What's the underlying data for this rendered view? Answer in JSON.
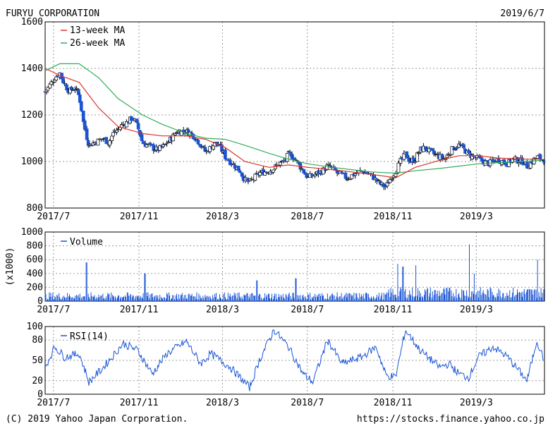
{
  "header": {
    "company": "FURYU CORPORATION",
    "date": "2019/6/7"
  },
  "footer": {
    "copyright": "(C) 2019 Yahoo Japan Corporation.",
    "url": "https://stocks.finance.yahoo.co.jp"
  },
  "colors": {
    "up": "#ffffff",
    "down": "#1a55d6",
    "ma13": "#e03030",
    "ma26": "#2fae5a",
    "volume": "#1a55d6",
    "rsi": "#1a55d6",
    "grid": "#9a9a9a"
  },
  "chart_data": [
    {
      "type": "candlestick",
      "name": "price",
      "ylim": [
        800,
        1600
      ],
      "yticks": [
        800,
        1000,
        1200,
        1400,
        1600
      ],
      "xrange": [
        "2017-06-19",
        "2019-06-07"
      ],
      "xticks": [
        {
          "date": "2017-07-01",
          "label": "2017/7"
        },
        {
          "date": "2017-11-01",
          "label": "2017/11"
        },
        {
          "date": "2018-03-01",
          "label": "2018/3"
        },
        {
          "date": "2018-07-01",
          "label": "2018/7"
        },
        {
          "date": "2018-11-01",
          "label": "2018/11"
        },
        {
          "date": "2019-03-01",
          "label": "2019/3"
        }
      ],
      "grid": true,
      "legend": [
        {
          "name": "13-week MA",
          "color": "ma13"
        },
        {
          "name": "26-week MA",
          "color": "ma26"
        }
      ],
      "anchors": [
        [
          "2017-06-19",
          1300
        ],
        [
          "2017-06-26",
          1330
        ],
        [
          "2017-07-03",
          1360
        ],
        [
          "2017-07-10",
          1380
        ],
        [
          "2017-07-17",
          1330
        ],
        [
          "2017-07-24",
          1300
        ],
        [
          "2017-07-31",
          1320
        ],
        [
          "2017-08-07",
          1280
        ],
        [
          "2017-08-14",
          1150
        ],
        [
          "2017-08-21",
          1070
        ],
        [
          "2017-08-28",
          1080
        ],
        [
          "2017-09-04",
          1090
        ],
        [
          "2017-09-11",
          1100
        ],
        [
          "2017-09-18",
          1080
        ],
        [
          "2017-09-25",
          1120
        ],
        [
          "2017-10-02",
          1140
        ],
        [
          "2017-10-09",
          1160
        ],
        [
          "2017-10-16",
          1170
        ],
        [
          "2017-10-23",
          1190
        ],
        [
          "2017-10-30",
          1150
        ],
        [
          "2017-11-06",
          1080
        ],
        [
          "2017-11-13",
          1070
        ],
        [
          "2017-11-20",
          1060
        ],
        [
          "2017-11-27",
          1050
        ],
        [
          "2017-12-04",
          1060
        ],
        [
          "2017-12-11",
          1080
        ],
        [
          "2017-12-18",
          1100
        ],
        [
          "2017-12-25",
          1130
        ],
        [
          "2018-01-08",
          1130
        ],
        [
          "2018-01-15",
          1120
        ],
        [
          "2018-01-22",
          1100
        ],
        [
          "2018-01-29",
          1070
        ],
        [
          "2018-02-05",
          1040
        ],
        [
          "2018-02-12",
          1060
        ],
        [
          "2018-02-19",
          1080
        ],
        [
          "2018-02-26",
          1060
        ],
        [
          "2018-03-05",
          1020
        ],
        [
          "2018-03-12",
          1000
        ],
        [
          "2018-03-19",
          980
        ],
        [
          "2018-03-26",
          960
        ],
        [
          "2018-04-02",
          920
        ],
        [
          "2018-04-09",
          910
        ],
        [
          "2018-04-16",
          930
        ],
        [
          "2018-04-23",
          950
        ],
        [
          "2018-05-07",
          960
        ],
        [
          "2018-05-14",
          970
        ],
        [
          "2018-05-21",
          990
        ],
        [
          "2018-05-28",
          1000
        ],
        [
          "2018-06-04",
          1030
        ],
        [
          "2018-06-11",
          1020
        ],
        [
          "2018-06-18",
          990
        ],
        [
          "2018-06-25",
          960
        ],
        [
          "2018-07-02",
          930
        ],
        [
          "2018-07-09",
          940
        ],
        [
          "2018-07-16",
          950
        ],
        [
          "2018-07-23",
          960
        ],
        [
          "2018-07-30",
          980
        ],
        [
          "2018-08-06",
          970
        ],
        [
          "2018-08-13",
          950
        ],
        [
          "2018-08-20",
          940
        ],
        [
          "2018-08-27",
          930
        ],
        [
          "2018-09-03",
          940
        ],
        [
          "2018-09-10",
          950
        ],
        [
          "2018-09-17",
          960
        ],
        [
          "2018-09-24",
          950
        ],
        [
          "2018-10-01",
          940
        ],
        [
          "2018-10-08",
          920
        ],
        [
          "2018-10-15",
          900
        ],
        [
          "2018-10-22",
          890
        ],
        [
          "2018-10-29",
          930
        ],
        [
          "2018-11-05",
          960
        ],
        [
          "2018-11-12",
          1000
        ],
        [
          "2018-11-19",
          1030
        ],
        [
          "2018-11-26",
          1000
        ],
        [
          "2018-12-03",
          1010
        ],
        [
          "2018-12-10",
          1050
        ],
        [
          "2018-12-17",
          1060
        ],
        [
          "2018-12-25",
          1040
        ],
        [
          "2019-01-07",
          1020
        ],
        [
          "2019-01-15",
          1010
        ],
        [
          "2019-01-21",
          1040
        ],
        [
          "2019-01-28",
          1060
        ],
        [
          "2019-02-04",
          1070
        ],
        [
          "2019-02-12",
          1050
        ],
        [
          "2019-02-18",
          1030
        ],
        [
          "2019-02-25",
          1020
        ],
        [
          "2019-03-04",
          1010
        ],
        [
          "2019-03-11",
          1000
        ],
        [
          "2019-03-18",
          990
        ],
        [
          "2019-03-25",
          1000
        ],
        [
          "2019-04-01",
          1010
        ],
        [
          "2019-04-08",
          1000
        ],
        [
          "2019-04-15",
          990
        ],
        [
          "2019-04-22",
          1010
        ],
        [
          "2019-05-07",
          1000
        ],
        [
          "2019-05-13",
          980
        ],
        [
          "2019-05-20",
          1000
        ],
        [
          "2019-05-27",
          1020
        ],
        [
          "2019-06-03",
          1010
        ]
      ],
      "ma13": [
        [
          "2017-06-19",
          1400
        ],
        [
          "2017-07-10",
          1370
        ],
        [
          "2017-08-07",
          1340
        ],
        [
          "2017-09-04",
          1230
        ],
        [
          "2017-10-02",
          1150
        ],
        [
          "2017-11-06",
          1120
        ],
        [
          "2017-12-04",
          1110
        ],
        [
          "2018-01-08",
          1110
        ],
        [
          "2018-02-05",
          1095
        ],
        [
          "2018-03-05",
          1060
        ],
        [
          "2018-04-02",
          1000
        ],
        [
          "2018-05-07",
          975
        ],
        [
          "2018-06-04",
          985
        ],
        [
          "2018-07-02",
          975
        ],
        [
          "2018-08-06",
          965
        ],
        [
          "2018-09-03",
          955
        ],
        [
          "2018-10-01",
          945
        ],
        [
          "2018-11-05",
          930
        ],
        [
          "2018-12-03",
          975
        ],
        [
          "2019-01-07",
          1005
        ],
        [
          "2019-02-04",
          1025
        ],
        [
          "2019-03-04",
          1025
        ],
        [
          "2019-04-01",
          1015
        ],
        [
          "2019-05-07",
          1010
        ],
        [
          "2019-06-03",
          1010
        ]
      ],
      "ma26": [
        [
          "2017-06-19",
          1390
        ],
        [
          "2017-07-10",
          1420
        ],
        [
          "2017-08-07",
          1420
        ],
        [
          "2017-09-04",
          1360
        ],
        [
          "2017-10-02",
          1270
        ],
        [
          "2017-11-06",
          1200
        ],
        [
          "2017-12-04",
          1160
        ],
        [
          "2018-01-08",
          1120
        ],
        [
          "2018-02-05",
          1100
        ],
        [
          "2018-03-05",
          1095
        ],
        [
          "2018-04-02",
          1070
        ],
        [
          "2018-05-07",
          1035
        ],
        [
          "2018-06-04",
          1010
        ],
        [
          "2018-07-02",
          990
        ],
        [
          "2018-08-06",
          975
        ],
        [
          "2018-09-03",
          965
        ],
        [
          "2018-10-01",
          955
        ],
        [
          "2018-11-05",
          950
        ],
        [
          "2018-12-03",
          960
        ],
        [
          "2019-01-07",
          970
        ],
        [
          "2019-02-04",
          980
        ],
        [
          "2019-03-04",
          990
        ],
        [
          "2019-04-01",
          995
        ],
        [
          "2019-05-07",
          1000
        ],
        [
          "2019-06-03",
          1005
        ]
      ]
    },
    {
      "type": "bar",
      "name": "volume",
      "ylim": [
        0,
        1000
      ],
      "yticks": [
        0,
        200,
        400,
        600,
        800,
        1000
      ],
      "ylabel": "(x1000)",
      "legend": [
        {
          "name": "Volume",
          "color": "volume"
        }
      ],
      "grid": true,
      "base": 85,
      "spikes": [
        [
          "2017-08-18",
          560
        ],
        [
          "2017-11-10",
          400
        ],
        [
          "2018-04-20",
          300
        ],
        [
          "2018-06-15",
          330
        ],
        [
          "2018-11-08",
          540
        ],
        [
          "2018-11-16",
          500
        ],
        [
          "2018-12-05",
          520
        ],
        [
          "2019-02-20",
          820
        ],
        [
          "2019-02-27",
          400
        ],
        [
          "2019-05-29",
          600
        ]
      ]
    },
    {
      "type": "line",
      "name": "rsi",
      "ylim": [
        0,
        100
      ],
      "yticks": [
        0,
        20,
        50,
        80,
        100
      ],
      "legend": [
        {
          "name": "RSI(14)",
          "color": "rsi"
        }
      ],
      "grid": true,
      "anchors": [
        [
          "2017-06-19",
          40
        ],
        [
          "2017-07-03",
          70
        ],
        [
          "2017-07-17",
          55
        ],
        [
          "2017-08-07",
          60
        ],
        [
          "2017-08-21",
          18
        ],
        [
          "2017-09-11",
          40
        ],
        [
          "2017-10-09",
          75
        ],
        [
          "2017-10-30",
          65
        ],
        [
          "2017-11-20",
          30
        ],
        [
          "2017-12-11",
          60
        ],
        [
          "2018-01-08",
          78
        ],
        [
          "2018-01-29",
          45
        ],
        [
          "2018-02-12",
          60
        ],
        [
          "2018-03-12",
          40
        ],
        [
          "2018-04-09",
          10
        ],
        [
          "2018-04-23",
          50
        ],
        [
          "2018-05-14",
          95
        ],
        [
          "2018-06-04",
          70
        ],
        [
          "2018-06-25",
          30
        ],
        [
          "2018-07-09",
          18
        ],
        [
          "2018-07-30",
          80
        ],
        [
          "2018-08-20",
          45
        ],
        [
          "2018-09-17",
          55
        ],
        [
          "2018-10-08",
          70
        ],
        [
          "2018-10-22",
          28
        ],
        [
          "2018-11-05",
          25
        ],
        [
          "2018-11-19",
          95
        ],
        [
          "2018-12-10",
          65
        ],
        [
          "2019-01-07",
          40
        ],
        [
          "2019-01-21",
          45
        ],
        [
          "2019-02-04",
          30
        ],
        [
          "2019-02-18",
          25
        ],
        [
          "2019-03-04",
          55
        ],
        [
          "2019-03-25",
          70
        ],
        [
          "2019-04-15",
          55
        ],
        [
          "2019-05-13",
          20
        ],
        [
          "2019-05-27",
          80
        ],
        [
          "2019-06-07",
          48
        ]
      ]
    }
  ]
}
